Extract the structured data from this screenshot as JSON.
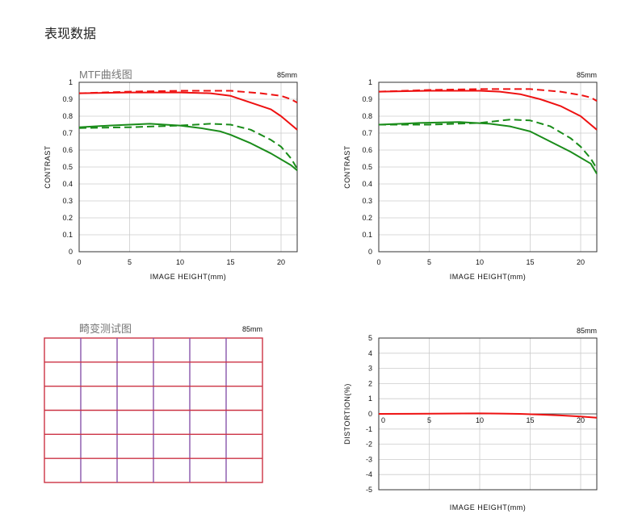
{
  "page": {
    "title": "表现数据",
    "mtf_caption": "MTF曲线图",
    "distortion_grid_caption": "畸变测试图"
  },
  "colors": {
    "red": "#ee1111",
    "green": "#1a8c1a",
    "grid": "#cccccc",
    "axis": "#333333",
    "grid_lines": "#cc3344"
  },
  "chart_data": [
    {
      "id": "mtf-left",
      "type": "line",
      "lens_label": "85mm",
      "xlabel": "IMAGE HEIGHT(mm)",
      "ylabel": "CONTRAST",
      "xlim": [
        0,
        21.6
      ],
      "ylim": [
        0,
        1
      ],
      "xticks": [
        0,
        5,
        10,
        15,
        20
      ],
      "yticks": [
        0,
        0.1,
        0.2,
        0.3,
        0.4,
        0.5,
        0.6,
        0.7,
        0.8,
        0.9,
        1
      ],
      "ytick_labels": [
        "0",
        "0.1",
        "0.2",
        "0.3",
        "0.4",
        "0.5",
        "0.6",
        "0.7",
        "0.8",
        "0.9",
        "1"
      ],
      "grid": true,
      "series": [
        {
          "color": "red",
          "dash": false,
          "points": [
            [
              0,
              0.935
            ],
            [
              5,
              0.94
            ],
            [
              10,
              0.94
            ],
            [
              13,
              0.935
            ],
            [
              15,
              0.92
            ],
            [
              17,
              0.88
            ],
            [
              19,
              0.84
            ],
            [
              20,
              0.8
            ],
            [
              21,
              0.75
            ],
            [
              21.6,
              0.72
            ]
          ]
        },
        {
          "color": "red",
          "dash": true,
          "points": [
            [
              0,
              0.935
            ],
            [
              5,
              0.945
            ],
            [
              10,
              0.95
            ],
            [
              15,
              0.95
            ],
            [
              18,
              0.935
            ],
            [
              20,
              0.92
            ],
            [
              21,
              0.9
            ],
            [
              21.6,
              0.88
            ]
          ]
        },
        {
          "color": "green",
          "dash": false,
          "points": [
            [
              0,
              0.735
            ],
            [
              3,
              0.745
            ],
            [
              7,
              0.755
            ],
            [
              10,
              0.745
            ],
            [
              12,
              0.73
            ],
            [
              14,
              0.71
            ],
            [
              15,
              0.69
            ],
            [
              17,
              0.64
            ],
            [
              19,
              0.58
            ],
            [
              21,
              0.51
            ],
            [
              21.6,
              0.48
            ]
          ]
        },
        {
          "color": "green",
          "dash": true,
          "points": [
            [
              0,
              0.73
            ],
            [
              5,
              0.735
            ],
            [
              10,
              0.745
            ],
            [
              13,
              0.755
            ],
            [
              15,
              0.75
            ],
            [
              17,
              0.72
            ],
            [
              19,
              0.66
            ],
            [
              20,
              0.62
            ],
            [
              21,
              0.55
            ],
            [
              21.6,
              0.49
            ]
          ]
        }
      ]
    },
    {
      "id": "mtf-right",
      "type": "line",
      "lens_label": "85mm",
      "xlabel": "IMAGE HEIGHT(mm)",
      "ylabel": "CONTRAST",
      "xlim": [
        0,
        21.6
      ],
      "ylim": [
        0,
        1
      ],
      "xticks": [
        0,
        5,
        10,
        15,
        20
      ],
      "yticks": [
        0,
        0.1,
        0.2,
        0.3,
        0.4,
        0.5,
        0.6,
        0.7,
        0.8,
        0.9,
        1
      ],
      "ytick_labels": [
        "0",
        "0.1",
        "0.2",
        "0.3",
        "0.4",
        "0.5",
        "0.6",
        "0.7",
        "0.8",
        "0.9",
        "1"
      ],
      "grid": true,
      "series": [
        {
          "color": "red",
          "dash": false,
          "points": [
            [
              0,
              0.945
            ],
            [
              5,
              0.95
            ],
            [
              10,
              0.95
            ],
            [
              12,
              0.945
            ],
            [
              14,
              0.93
            ],
            [
              16,
              0.9
            ],
            [
              18,
              0.86
            ],
            [
              20,
              0.8
            ],
            [
              21,
              0.75
            ],
            [
              21.6,
              0.72
            ]
          ]
        },
        {
          "color": "red",
          "dash": true,
          "points": [
            [
              0,
              0.945
            ],
            [
              5,
              0.955
            ],
            [
              10,
              0.96
            ],
            [
              15,
              0.96
            ],
            [
              18,
              0.945
            ],
            [
              20,
              0.925
            ],
            [
              21,
              0.91
            ],
            [
              21.6,
              0.89
            ]
          ]
        },
        {
          "color": "green",
          "dash": false,
          "points": [
            [
              0,
              0.75
            ],
            [
              4,
              0.76
            ],
            [
              8,
              0.765
            ],
            [
              11,
              0.755
            ],
            [
              13,
              0.74
            ],
            [
              15,
              0.71
            ],
            [
              17,
              0.65
            ],
            [
              19,
              0.59
            ],
            [
              21,
              0.52
            ],
            [
              21.6,
              0.46
            ]
          ]
        },
        {
          "color": "green",
          "dash": true,
          "points": [
            [
              0,
              0.75
            ],
            [
              5,
              0.75
            ],
            [
              10,
              0.76
            ],
            [
              13,
              0.78
            ],
            [
              15,
              0.775
            ],
            [
              17,
              0.74
            ],
            [
              19,
              0.67
            ],
            [
              20,
              0.62
            ],
            [
              21,
              0.55
            ],
            [
              21.6,
              0.49
            ]
          ]
        }
      ]
    },
    {
      "id": "distortion",
      "type": "line",
      "lens_label": "85mm",
      "xlabel": "IMAGE HEIGHT(mm)",
      "ylabel": "DISTORTION(%)",
      "xlim": [
        0,
        21.6
      ],
      "ylim": [
        -5,
        5
      ],
      "xticks": [
        0,
        5,
        10,
        15,
        20
      ],
      "yticks": [
        -5,
        -4,
        -3,
        -2,
        -1,
        0,
        1,
        2,
        3,
        4,
        5
      ],
      "ytick_labels": [
        "-5",
        "-4",
        "-3",
        "-2",
        "-1",
        "0",
        "1",
        "2",
        "3",
        "4",
        "5"
      ],
      "grid": true,
      "series": [
        {
          "color": "red",
          "dash": false,
          "points": [
            [
              0,
              0
            ],
            [
              5,
              0.01
            ],
            [
              10,
              0.03
            ],
            [
              12,
              0.02
            ],
            [
              14,
              0
            ],
            [
              16,
              -0.05
            ],
            [
              18,
              -0.1
            ],
            [
              20,
              -0.17
            ],
            [
              21.6,
              -0.25
            ]
          ]
        }
      ]
    }
  ]
}
